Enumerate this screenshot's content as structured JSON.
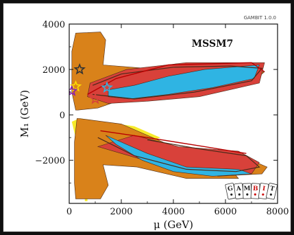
{
  "header": {
    "version_label": "GAMBIT 1.0.0",
    "model_label": "MSSM7"
  },
  "logo": {
    "letters": [
      "G",
      "A",
      "M",
      "B",
      "I",
      "T"
    ],
    "colors": {
      "dark": "#222222",
      "red": "#cc1111"
    }
  },
  "colors": {
    "yellow": "#f7ea2a",
    "orange": "#d9821a",
    "red": "#d8413a",
    "blue": "#2fb4e3",
    "contour_dark": "#4a2a1a",
    "contour_red": "#b80000",
    "star_dark": "#333333",
    "star_yellow": "#ffe000",
    "star_blue": "#2fb4e3",
    "star_red": "#d8413a",
    "star_purple": "#8b1fb1"
  },
  "chart_data": {
    "type": "heatmap",
    "title": "",
    "xlabel": "μ (GeV)",
    "ylabel": "M₁ (GeV)",
    "xlim": [
      0,
      8000
    ],
    "ylim": [
      -3900,
      4000
    ],
    "xticks": [
      0,
      2000,
      4000,
      6000,
      8000
    ],
    "xtick_labels": [
      "0",
      "2000",
      "4000",
      "6000",
      "8000"
    ],
    "yticks": [
      -2000,
      0,
      2000,
      4000
    ],
    "ytick_labels": [
      "−2000",
      "0",
      "2000",
      "4000"
    ],
    "grid": false,
    "legend": "none",
    "regions": [
      {
        "name": "yellow",
        "color": "yellow",
        "polygons": [
          [
            [
              250,
              -3800
            ],
            [
              600,
              -3800
            ],
            [
              600,
              -2500
            ],
            [
              350,
              -1500
            ],
            [
              100,
              -300
            ],
            [
              400,
              -150
            ],
            [
              2500,
              -500
            ],
            [
              3500,
              -1000
            ],
            [
              1000,
              -2000
            ],
            [
              700,
              -3000
            ],
            [
              700,
              -3800
            ]
          ]
        ]
      },
      {
        "name": "orange",
        "color": "orange",
        "polygons": [
          [
            [
              250,
              3600
            ],
            [
              1200,
              3650
            ],
            [
              1400,
              3300
            ],
            [
              1300,
              2200
            ],
            [
              3500,
              2000
            ],
            [
              7500,
              1900
            ],
            [
              7200,
              1600
            ],
            [
              4500,
              1200
            ],
            [
              2600,
              900
            ],
            [
              1100,
              300
            ],
            [
              250,
              200
            ],
            [
              100,
              1000
            ],
            [
              100,
              2800
            ]
          ],
          [
            [
              250,
              -3700
            ],
            [
              1200,
              -3700
            ],
            [
              1500,
              -3100
            ],
            [
              1300,
              -2200
            ],
            [
              2600,
              -2300
            ],
            [
              4500,
              -2800
            ],
            [
              6500,
              -2800
            ],
            [
              6200,
              -2400
            ],
            [
              5500,
              -2000
            ],
            [
              4000,
              -1400
            ],
            [
              2000,
              -400
            ],
            [
              300,
              -150
            ],
            [
              200,
              -1200
            ],
            [
              200,
              -3000
            ]
          ],
          [
            [
              5700,
              -2700
            ],
            [
              7400,
              -2600
            ],
            [
              7600,
              -2300
            ],
            [
              7000,
              -2000
            ],
            [
              5800,
              -2200
            ]
          ]
        ]
      },
      {
        "name": "red",
        "color": "red",
        "polygons": [
          [
            [
              800,
              1400
            ],
            [
              2200,
              2000
            ],
            [
              4500,
              2300
            ],
            [
              7500,
              2300
            ],
            [
              7300,
              1400
            ],
            [
              5000,
              800
            ],
            [
              3000,
              600
            ],
            [
              1500,
              500
            ],
            [
              700,
              800
            ]
          ],
          [
            [
              1100,
              -1400
            ],
            [
              2500,
              -900
            ],
            [
              4200,
              -1400
            ],
            [
              6500,
              -1600
            ],
            [
              7300,
              -2100
            ],
            [
              7000,
              -2600
            ],
            [
              5500,
              -2600
            ],
            [
              3500,
              -2200
            ],
            [
              2000,
              -1700
            ]
          ]
        ]
      },
      {
        "name": "blue",
        "color": "blue",
        "polygons": [
          [
            [
              1500,
              1100
            ],
            [
              2500,
              1300
            ],
            [
              3800,
              1700
            ],
            [
              5200,
              2000
            ],
            [
              7300,
              2200
            ],
            [
              7100,
              1600
            ],
            [
              5500,
              1200
            ],
            [
              3800,
              900
            ],
            [
              2300,
              700
            ],
            [
              1500,
              800
            ]
          ],
          [
            [
              1400,
              -900
            ],
            [
              3000,
              -1700
            ],
            [
              4500,
              -2300
            ],
            [
              6500,
              -2400
            ],
            [
              7000,
              -2600
            ],
            [
              5500,
              -2700
            ],
            [
              4000,
              -2500
            ],
            [
              2800,
              -2000
            ],
            [
              1800,
              -1300
            ]
          ]
        ]
      }
    ],
    "contours": [
      {
        "color": "contour_dark",
        "width": 1.2,
        "points": [
          [
            900,
            1300
          ],
          [
            2000,
            1800
          ],
          [
            4000,
            2100
          ],
          [
            6200,
            2150
          ],
          [
            7400,
            2050
          ],
          [
            7000,
            1500
          ],
          [
            4800,
            1000
          ],
          [
            2500,
            700
          ],
          [
            900,
            900
          ]
        ]
      },
      {
        "color": "contour_red",
        "width": 1.4,
        "points": [
          [
            700,
            900
          ],
          [
            1800,
            1600
          ],
          [
            3800,
            2200
          ],
          [
            7000,
            2300
          ],
          [
            7500,
            1900
          ]
        ]
      },
      {
        "color": "contour_dark",
        "width": 1.2,
        "points": [
          [
            1100,
            -1000
          ],
          [
            2500,
            -1800
          ],
          [
            4500,
            -2400
          ],
          [
            6400,
            -2500
          ],
          [
            7300,
            -2300
          ],
          [
            6800,
            -1800
          ],
          [
            5000,
            -1500
          ],
          [
            3000,
            -1100
          ]
        ]
      },
      {
        "color": "contour_red",
        "width": 1.4,
        "points": [
          [
            1200,
            -700
          ],
          [
            3000,
            -1000
          ],
          [
            5200,
            -1400
          ],
          [
            6800,
            -1700
          ]
        ]
      }
    ],
    "markers": [
      {
        "x": 400,
        "y": 2000,
        "color": "star_dark"
      },
      {
        "x": 250,
        "y": 1250,
        "color": "star_yellow"
      },
      {
        "x": 100,
        "y": 1050,
        "color": "star_purple"
      },
      {
        "x": 1450,
        "y": 1200,
        "color": "star_blue"
      },
      {
        "x": 1000,
        "y": 700,
        "color": "star_red"
      }
    ]
  }
}
